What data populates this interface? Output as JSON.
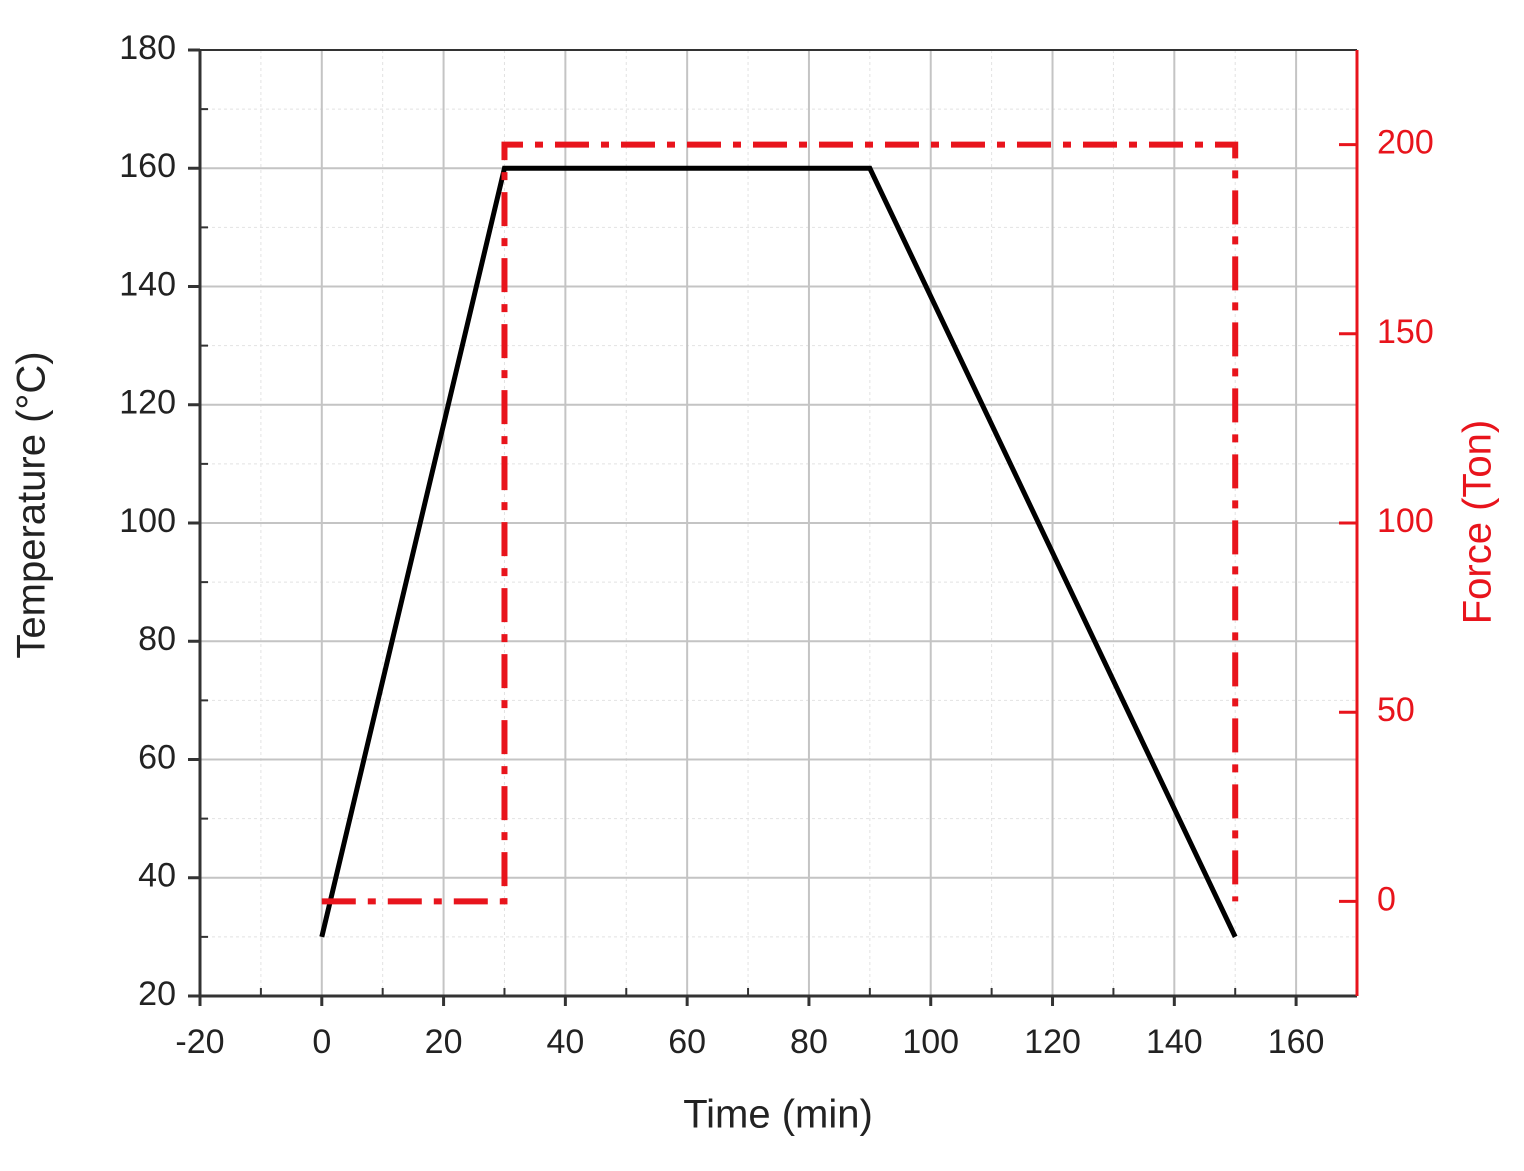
{
  "chart_data": {
    "type": "line",
    "xlabel": "Time (min)",
    "ylabel": "Temperature (°C)",
    "y2label": "Force (Ton)",
    "xlim": [
      -20,
      170
    ],
    "xticks": [
      -20,
      0,
      20,
      40,
      60,
      80,
      100,
      120,
      140,
      160
    ],
    "ylim": [
      20,
      180
    ],
    "yticks": [
      20,
      40,
      60,
      80,
      100,
      120,
      140,
      160,
      180
    ],
    "y2lim": [
      -25,
      225
    ],
    "y2ticks": [
      0,
      50,
      100,
      150,
      200
    ],
    "y2color": "#e8141c",
    "grid": true,
    "series": [
      {
        "color": "#000000",
        "style": "solid",
        "x": [
          0,
          30,
          90,
          150
        ],
        "values": [
          30,
          160,
          160,
          30
        ]
      },
      {
        "color": "#e8141c",
        "style": "dashdot",
        "axis": "y2",
        "x": [
          0,
          30,
          30,
          150,
          150
        ],
        "values": [
          0,
          0,
          200,
          200,
          0
        ]
      }
    ]
  }
}
